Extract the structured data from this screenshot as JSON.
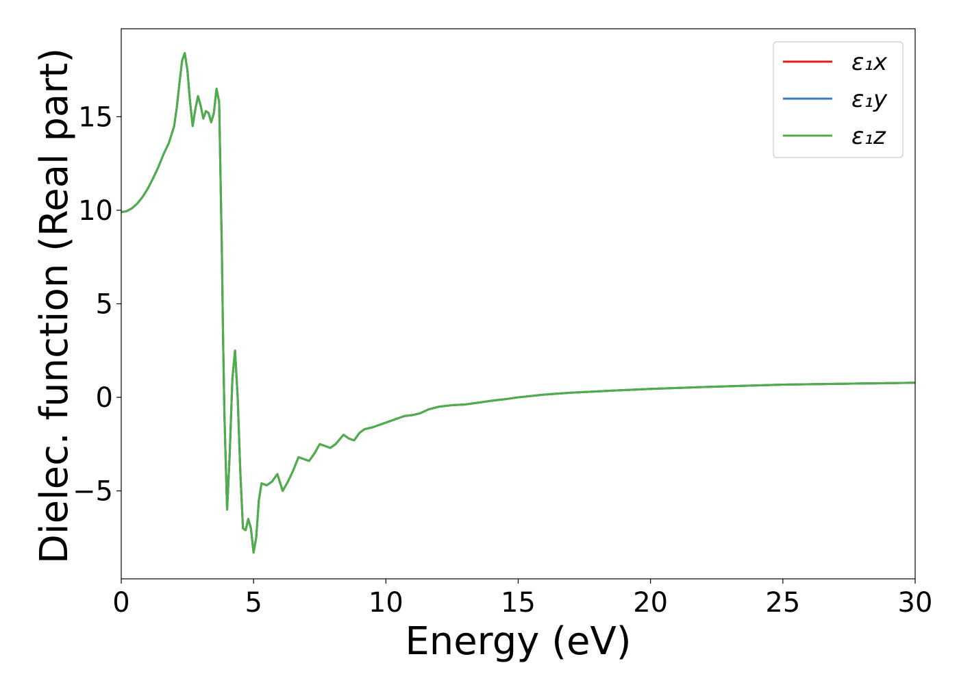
{
  "chart_data": {
    "type": "line",
    "xlabel": "Energy (eV)",
    "ylabel": "Dielec. function (Real part)",
    "xlim": [
      0,
      30
    ],
    "ylim": [
      -9.7,
      19.7
    ],
    "xticks": [
      0,
      5,
      10,
      15,
      20,
      25,
      30
    ],
    "yticks": [
      -5,
      0,
      5,
      10,
      15
    ],
    "xtick_labels": [
      "0",
      "5",
      "10",
      "15",
      "20",
      "25",
      "30"
    ],
    "ytick_labels": [
      "−5",
      "0",
      "5",
      "10",
      "15"
    ],
    "grid": false,
    "legend_position": "top-right",
    "series": [
      {
        "name": "ε₁x",
        "color": "#e41a1c",
        "x": [
          0,
          0.2,
          0.4,
          0.6,
          0.8,
          1.0,
          1.2,
          1.4,
          1.6,
          1.8,
          2.0,
          2.1,
          2.2,
          2.3,
          2.4,
          2.5,
          2.6,
          2.7,
          2.8,
          2.9,
          3.0,
          3.1,
          3.2,
          3.3,
          3.4,
          3.5,
          3.6,
          3.7,
          3.8,
          3.85,
          3.9,
          4.0,
          4.1,
          4.2,
          4.3,
          4.4,
          4.5,
          4.6,
          4.7,
          4.8,
          4.9,
          5.0,
          5.1,
          5.2,
          5.3,
          5.5,
          5.7,
          5.9,
          6.1,
          6.3,
          6.5,
          6.7,
          6.9,
          7.1,
          7.3,
          7.5,
          7.7,
          7.9,
          8.1,
          8.4,
          8.6,
          8.8,
          9.0,
          9.2,
          9.5,
          9.8,
          10.1,
          10.4,
          10.7,
          11.0,
          11.3,
          11.6,
          12.0,
          12.5,
          13.0,
          13.5,
          14.0,
          14.5,
          15.0,
          16.0,
          17.0,
          18.0,
          20.0,
          22.0,
          25.0,
          27.0,
          30.0
        ],
        "y": [
          9.9,
          9.95,
          10.1,
          10.35,
          10.7,
          11.15,
          11.7,
          12.3,
          13.0,
          13.6,
          14.5,
          15.5,
          16.8,
          18.0,
          18.4,
          17.5,
          15.8,
          14.5,
          15.4,
          16.1,
          15.6,
          14.9,
          15.3,
          15.2,
          14.7,
          15.2,
          16.5,
          15.8,
          8.0,
          3.0,
          -1.0,
          -6.0,
          -3.0,
          1.0,
          2.5,
          0.0,
          -4.0,
          -7.0,
          -7.1,
          -6.5,
          -7.0,
          -8.3,
          -7.5,
          -5.5,
          -4.6,
          -4.7,
          -4.5,
          -4.1,
          -5.0,
          -4.5,
          -3.9,
          -3.2,
          -3.3,
          -3.4,
          -3.0,
          -2.5,
          -2.6,
          -2.7,
          -2.5,
          -2.0,
          -2.2,
          -2.3,
          -1.9,
          -1.7,
          -1.6,
          -1.45,
          -1.3,
          -1.15,
          -1.0,
          -0.95,
          -0.85,
          -0.65,
          -0.5,
          -0.42,
          -0.38,
          -0.28,
          -0.18,
          -0.1,
          0.0,
          0.15,
          0.25,
          0.32,
          0.45,
          0.55,
          0.68,
          0.72,
          0.78
        ]
      },
      {
        "name": "ε₁y",
        "color": "#377eb8",
        "x": [
          0,
          0.2,
          0.4,
          0.6,
          0.8,
          1.0,
          1.2,
          1.4,
          1.6,
          1.8,
          2.0,
          2.1,
          2.2,
          2.3,
          2.4,
          2.5,
          2.6,
          2.7,
          2.8,
          2.9,
          3.0,
          3.1,
          3.2,
          3.3,
          3.4,
          3.5,
          3.6,
          3.7,
          3.8,
          3.85,
          3.9,
          4.0,
          4.1,
          4.2,
          4.3,
          4.4,
          4.5,
          4.6,
          4.7,
          4.8,
          4.9,
          5.0,
          5.1,
          5.2,
          5.3,
          5.5,
          5.7,
          5.9,
          6.1,
          6.3,
          6.5,
          6.7,
          6.9,
          7.1,
          7.3,
          7.5,
          7.7,
          7.9,
          8.1,
          8.4,
          8.6,
          8.8,
          9.0,
          9.2,
          9.5,
          9.8,
          10.1,
          10.4,
          10.7,
          11.0,
          11.3,
          11.6,
          12.0,
          12.5,
          13.0,
          13.5,
          14.0,
          14.5,
          15.0,
          16.0,
          17.0,
          18.0,
          20.0,
          22.0,
          25.0,
          27.0,
          30.0
        ],
        "y": [
          9.9,
          9.95,
          10.1,
          10.35,
          10.7,
          11.15,
          11.7,
          12.3,
          13.0,
          13.6,
          14.5,
          15.5,
          16.8,
          18.0,
          18.4,
          17.5,
          15.8,
          14.5,
          15.4,
          16.1,
          15.6,
          14.9,
          15.3,
          15.2,
          14.7,
          15.2,
          16.5,
          15.8,
          8.0,
          3.0,
          -1.0,
          -6.0,
          -3.0,
          1.0,
          2.5,
          0.0,
          -4.0,
          -7.0,
          -7.1,
          -6.5,
          -7.0,
          -8.3,
          -7.5,
          -5.5,
          -4.6,
          -4.7,
          -4.5,
          -4.1,
          -5.0,
          -4.5,
          -3.9,
          -3.2,
          -3.3,
          -3.4,
          -3.0,
          -2.5,
          -2.6,
          -2.7,
          -2.5,
          -2.0,
          -2.2,
          -2.3,
          -1.9,
          -1.7,
          -1.6,
          -1.45,
          -1.3,
          -1.15,
          -1.0,
          -0.95,
          -0.85,
          -0.65,
          -0.5,
          -0.42,
          -0.38,
          -0.28,
          -0.18,
          -0.1,
          0.0,
          0.15,
          0.25,
          0.32,
          0.45,
          0.55,
          0.68,
          0.72,
          0.78
        ]
      },
      {
        "name": "ε₁z",
        "color": "#4daf4a",
        "x": [
          0,
          0.2,
          0.4,
          0.6,
          0.8,
          1.0,
          1.2,
          1.4,
          1.6,
          1.8,
          2.0,
          2.1,
          2.2,
          2.3,
          2.4,
          2.5,
          2.6,
          2.7,
          2.8,
          2.9,
          3.0,
          3.1,
          3.2,
          3.3,
          3.4,
          3.5,
          3.6,
          3.7,
          3.8,
          3.85,
          3.9,
          4.0,
          4.1,
          4.2,
          4.3,
          4.4,
          4.5,
          4.6,
          4.7,
          4.8,
          4.9,
          5.0,
          5.1,
          5.2,
          5.3,
          5.5,
          5.7,
          5.9,
          6.1,
          6.3,
          6.5,
          6.7,
          6.9,
          7.1,
          7.3,
          7.5,
          7.7,
          7.9,
          8.1,
          8.4,
          8.6,
          8.8,
          9.0,
          9.2,
          9.5,
          9.8,
          10.1,
          10.4,
          10.7,
          11.0,
          11.3,
          11.6,
          12.0,
          12.5,
          13.0,
          13.5,
          14.0,
          14.5,
          15.0,
          16.0,
          17.0,
          18.0,
          20.0,
          22.0,
          25.0,
          27.0,
          30.0
        ],
        "y": [
          9.9,
          9.95,
          10.1,
          10.35,
          10.7,
          11.15,
          11.7,
          12.3,
          13.0,
          13.6,
          14.5,
          15.5,
          16.8,
          18.0,
          18.4,
          17.5,
          15.8,
          14.5,
          15.4,
          16.1,
          15.6,
          14.9,
          15.3,
          15.2,
          14.7,
          15.2,
          16.5,
          15.8,
          8.0,
          3.0,
          -1.0,
          -6.0,
          -3.0,
          1.0,
          2.5,
          0.0,
          -4.0,
          -7.0,
          -7.1,
          -6.5,
          -7.0,
          -8.3,
          -7.5,
          -5.5,
          -4.6,
          -4.7,
          -4.5,
          -4.1,
          -5.0,
          -4.5,
          -3.9,
          -3.2,
          -3.3,
          -3.4,
          -3.0,
          -2.5,
          -2.6,
          -2.7,
          -2.5,
          -2.0,
          -2.2,
          -2.3,
          -1.9,
          -1.7,
          -1.6,
          -1.45,
          -1.3,
          -1.15,
          -1.0,
          -0.95,
          -0.85,
          -0.65,
          -0.5,
          -0.42,
          -0.38,
          -0.28,
          -0.18,
          -0.1,
          0.0,
          0.15,
          0.25,
          0.32,
          0.45,
          0.55,
          0.68,
          0.72,
          0.78
        ]
      }
    ]
  }
}
